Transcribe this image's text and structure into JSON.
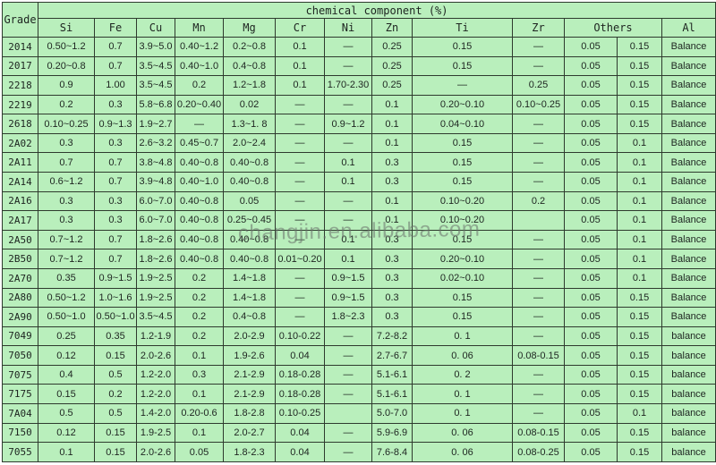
{
  "table": {
    "title": "chemical component (%)",
    "grade_header": "Grade",
    "columns": [
      "Si",
      "Fe",
      "Cu",
      "Mn",
      "Mg",
      "Cr",
      "Ni",
      "Zn",
      "Ti",
      "Zr",
      "Others",
      "Al"
    ],
    "others_colspan": 2,
    "rows": [
      {
        "grade": "2014",
        "cells": [
          "0.50~1.2",
          "0.7",
          "3.9~5.0",
          "0.40~1.2",
          "0.2~0.8",
          "0.1",
          "—",
          "0.25",
          "0.15",
          "—",
          "0.05",
          "0.15",
          "Balance"
        ]
      },
      {
        "grade": "2017",
        "cells": [
          "0.20~0.8",
          "0.7",
          "3.5~4.5",
          "0.40~1.0",
          "0.4~0.8",
          "0.1",
          "—",
          "0.25",
          "0.15",
          "—",
          "0.05",
          "0.15",
          "Balance"
        ]
      },
      {
        "grade": "2218",
        "cells": [
          "0.9",
          "1.00",
          "3.5~4.5",
          "0.2",
          "1.2~1.8",
          "0.1",
          "1.70-2.30",
          "0.25",
          "—",
          "0.25",
          "0.05",
          "0.15",
          "Balance"
        ]
      },
      {
        "grade": "2219",
        "cells": [
          "0.2",
          "0.3",
          "5.8~6.8",
          "0.20~0.40",
          "0.02",
          "—",
          "—",
          "0.1",
          "0.20~0.10",
          "0.10~0.25",
          "0.05",
          "0.15",
          "Balance"
        ]
      },
      {
        "grade": "2618",
        "cells": [
          "0.10~0.25",
          "0.9~1.3",
          "1.9~2.7",
          "—",
          "1.3~1. 8",
          "—",
          "0.9~1.2",
          "0.1",
          "0.04~0.10",
          "—",
          "0.05",
          "0.15",
          "Balance"
        ]
      },
      {
        "grade": "2A02",
        "cells": [
          "0.3",
          "0.3",
          "2.6~3.2",
          "0.45~0.7",
          "2.0~2.4",
          "—",
          "—",
          "0.1",
          "0.15",
          "—",
          "0.05",
          "0.1",
          "Balance"
        ]
      },
      {
        "grade": "2A11",
        "cells": [
          "0.7",
          "0.7",
          "3.8~4.8",
          "0.40~0.8",
          "0.40~0.8",
          "—",
          "0.1",
          "0.3",
          "0.15",
          "—",
          "0.05",
          "0.1",
          "Balance"
        ]
      },
      {
        "grade": "2A14",
        "cells": [
          "0.6~1.2",
          "0.7",
          "3.9~4.8",
          "0.40~1.0",
          "0.40~0.8",
          "—",
          "0.1",
          "0.3",
          "0.15",
          "—",
          "0.05",
          "0.1",
          "Balance"
        ]
      },
      {
        "grade": "2A16",
        "cells": [
          "0.3",
          "0.3",
          "6.0~7.0",
          "0.40~0.8",
          "0.05",
          "—",
          "—",
          "0.1",
          "0.10~0.20",
          "0.2",
          "0.05",
          "0.1",
          "Balance"
        ]
      },
      {
        "grade": "2A17",
        "cells": [
          "0.3",
          "0.3",
          "6.0~7.0",
          "0.40~0.8",
          "0.25~0.45",
          "—",
          "—",
          "0.1",
          "0.10~0.20",
          "",
          "0.05",
          "0.1",
          "Balance"
        ]
      },
      {
        "grade": "2A50",
        "cells": [
          "0.7~1.2",
          "0.7",
          "1.8~2.6",
          "0.40~0.8",
          "0.40~0.8",
          "—",
          "0.1",
          "0.3",
          "0.15",
          "—",
          "0.05",
          "0.1",
          "Balance"
        ]
      },
      {
        "grade": "2B50",
        "cells": [
          "0.7~1.2",
          "0.7",
          "1.8~2.6",
          "0.40~0.8",
          "0.40~0.8",
          "0.01~0.20",
          "0.1",
          "0.3",
          "0.20~0.10",
          "—",
          "0.05",
          "0.1",
          "Balance"
        ]
      },
      {
        "grade": "2A70",
        "cells": [
          "0.35",
          "0.9~1.5",
          "1.9~2.5",
          "0.2",
          "1.4~1.8",
          "—",
          "0.9~1.5",
          "0.3",
          "0.02~0.10",
          "—",
          "0.05",
          "0.1",
          "Balance"
        ]
      },
      {
        "grade": "2A80",
        "cells": [
          "0.50~1.2",
          "1.0~1.6",
          "1.9~2.5",
          "0.2",
          "1.4~1.8",
          "—",
          "0.9~1.5",
          "0.3",
          "0.15",
          "—",
          "0.05",
          "0.15",
          "Balance"
        ]
      },
      {
        "grade": "2A90",
        "cells": [
          "0.50~1.0",
          "0.50~1.0",
          "3.5~4.5",
          "0.2",
          "0.4~0.8",
          "—",
          "1.8~2.3",
          "0.3",
          "0.15",
          "—",
          "0.05",
          "0.15",
          "Balance"
        ]
      },
      {
        "grade": "7049",
        "cells": [
          "0.25",
          "0.35",
          "1.2-1.9",
          "0.2",
          "2.0-2.9",
          "0.10-0.22",
          "—",
          "7.2-8.2",
          "0. 1",
          "—",
          "0.05",
          "0.15",
          "balance"
        ]
      },
      {
        "grade": "7050",
        "cells": [
          "0.12",
          "0.15",
          "2.0-2.6",
          "0.1",
          "1.9-2.6",
          "0.04",
          "—",
          "2.7-6.7",
          "0. 06",
          "0.08-0.15",
          "0.05",
          "0.15",
          "balance"
        ]
      },
      {
        "grade": "7075",
        "cells": [
          "0.4",
          "0.5",
          "1.2-2.0",
          "0.3",
          "2.1-2.9",
          "0.18-0.28",
          "—",
          "5.1-6.1",
          "0. 2",
          "—",
          "0.05",
          "0.15",
          "balance"
        ]
      },
      {
        "grade": "7175",
        "cells": [
          "0.15",
          "0.2",
          "1.2-2.0",
          "0.1",
          "2.1-2.9",
          "0.18-0.28",
          "—",
          "5.1-6.1",
          "0. 1",
          "—",
          "0.05",
          "0.15",
          "balance"
        ]
      },
      {
        "grade": "7A04",
        "cells": [
          "0.5",
          "0.5",
          "1.4-2.0",
          "0.20-0.6",
          "1.8-2.8",
          "0.10-0.25",
          "",
          "5.0-7.0",
          "0. 1",
          "—",
          "0.05",
          "0.1",
          "balance"
        ]
      },
      {
        "grade": "7150",
        "cells": [
          "0.12",
          "0.15",
          "1.9-2.5",
          "0.1",
          "2.0-2.7",
          "0.04",
          "—",
          "5.9-6.9",
          "0. 06",
          "0.08-0.15",
          "0.05",
          "0.15",
          "balance"
        ]
      },
      {
        "grade": "7055",
        "cells": [
          "0.1",
          "0.15",
          "2.0-2.6",
          "0.05",
          "1.8-2.3",
          "0.04",
          "—",
          "7.6-8.4",
          "0. 06",
          "0.08-0.25",
          "0.05",
          "0.15",
          "balance"
        ]
      }
    ]
  },
  "watermark": {
    "text": "changjin.en.alibaba.com"
  },
  "colors": {
    "cell_background": "#b9efbc",
    "grid_border": "#2e3a2e",
    "text": "#1d2420",
    "watermark": "#69706a"
  }
}
